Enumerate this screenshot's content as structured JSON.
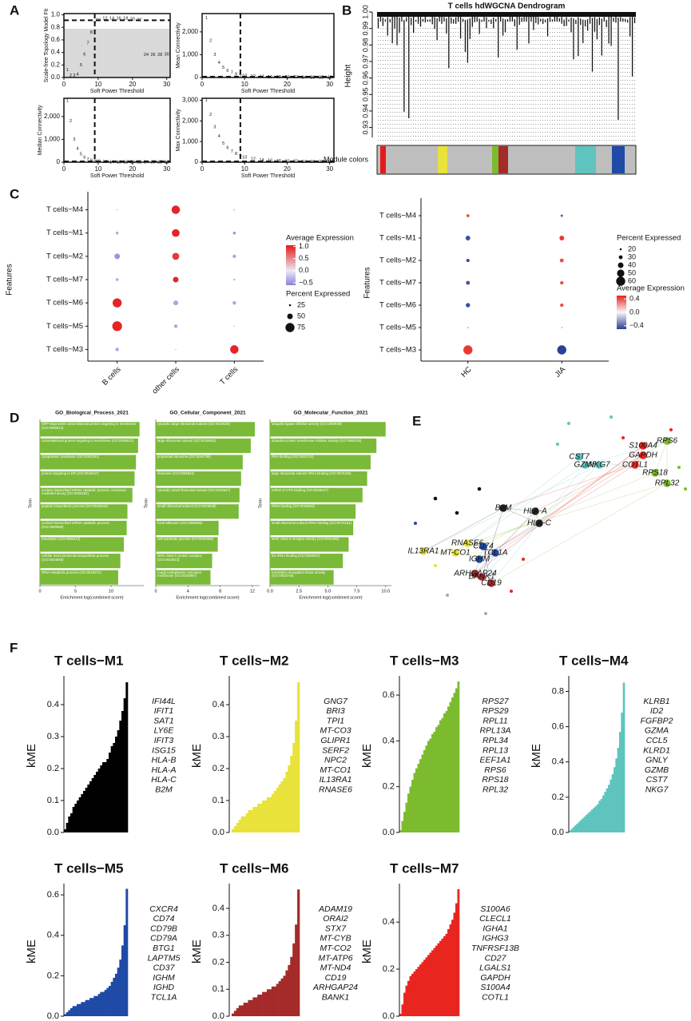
{
  "panel_labels": [
    "A",
    "B",
    "C",
    "D",
    "E",
    "F"
  ],
  "chart_data": [
    {
      "type": "scatter",
      "ylabel": "Scale-free Topology Model Fit",
      "xlabel": "Soft Power Threshold",
      "x": [
        1,
        2,
        3,
        4,
        5,
        6,
        7,
        8,
        9,
        10,
        12,
        14,
        16,
        18,
        20,
        22,
        24,
        26,
        28,
        30
      ],
      "values": [
        0.12,
        0.03,
        0.03,
        0.05,
        0.2,
        0.37,
        0.55,
        0.72,
        0.87,
        0.92,
        0.94,
        0.94,
        0.94,
        0.94,
        0.93,
        0.92,
        0.36,
        0.36,
        0.36,
        0.37
      ],
      "xlim": [
        0,
        31
      ],
      "xticks": [
        0,
        10,
        20,
        30
      ],
      "ylim": [
        0,
        1.02
      ],
      "yticks": [
        {
          "value": 0,
          "label": "0.0"
        },
        0.2,
        0.4,
        0.6,
        0.8,
        {
          "value": 1,
          "label": "1.0"
        }
      ],
      "vline": 9,
      "hline": 0.9
    },
    {
      "type": "scatter",
      "ylabel": "Mean Connectivity",
      "xlabel": "Soft Power Threshold",
      "x": [
        1,
        2,
        3,
        4,
        5,
        6,
        7,
        8,
        9,
        10,
        12,
        14,
        16,
        18,
        20,
        22,
        24,
        26,
        28,
        30
      ],
      "values": [
        2600,
        1600,
        1000,
        650,
        430,
        290,
        200,
        140,
        100,
        75,
        45,
        30,
        20,
        14,
        10,
        8,
        6,
        5,
        4,
        3
      ],
      "xlim": [
        0,
        31
      ],
      "xticks": [
        0,
        10,
        20,
        30
      ],
      "ylim": [
        0,
        2800
      ],
      "yticks": [
        0,
        {
          "value": 1000,
          "label": "1,000"
        },
        {
          "value": 2000,
          "label": "2,000"
        }
      ],
      "vline": 9,
      "hline": 0
    },
    {
      "type": "scatter",
      "ylabel": "Median Connectivity",
      "xlabel": "Soft Power Threshold",
      "x": [
        1,
        2,
        3,
        4,
        5,
        6,
        7,
        8,
        9,
        10,
        12,
        14,
        16,
        18,
        20,
        22,
        24,
        26,
        28,
        30
      ],
      "values": [
        2700,
        1800,
        1000,
        600,
        350,
        200,
        120,
        70,
        40,
        25,
        12,
        6,
        4,
        2,
        1,
        1,
        0,
        0,
        0,
        0
      ],
      "xlim": [
        0,
        31
      ],
      "xticks": [
        0,
        10,
        20,
        30
      ],
      "ylim": [
        0,
        2800
      ],
      "yticks": [
        0,
        {
          "value": 1000,
          "label": "1,000"
        },
        {
          "value": 2000,
          "label": "2,000"
        }
      ],
      "vline": 9,
      "hline": 0
    },
    {
      "type": "scatter",
      "ylabel": "Max Connectivity",
      "xlabel": "Soft Power Threshold",
      "x": [
        1,
        2,
        3,
        4,
        5,
        6,
        7,
        8,
        9,
        10,
        12,
        14,
        16,
        18,
        20,
        22,
        24,
        26,
        28,
        30
      ],
      "values": [
        3000,
        2300,
        1700,
        1250,
        900,
        700,
        520,
        400,
        300,
        230,
        150,
        100,
        70,
        50,
        40,
        30,
        20,
        18,
        15,
        12
      ],
      "xlim": [
        0,
        31
      ],
      "xticks": [
        0,
        10,
        20,
        30
      ],
      "ylim": [
        0,
        3100
      ],
      "yticks": [
        0,
        {
          "value": 1000,
          "label": "1,000"
        },
        {
          "value": 2000,
          "label": "2,000"
        },
        {
          "value": 3000,
          "label": "3,000"
        }
      ],
      "vline": 9,
      "hline": 0
    },
    {
      "type": "dendrogram",
      "title": "T cells hdWGCNA Dendrogram",
      "ylabel": "Height",
      "colorbar_label": "Module colors",
      "ylim": [
        0.924,
        1.0
      ],
      "yticks": [
        0.93,
        0.94,
        0.95,
        0.96,
        0.97,
        0.98,
        0.99,
        {
          "value": 1,
          "label": "1.00"
        }
      ]
    },
    {
      "type": "dot",
      "ylabel": "Features",
      "categories": [
        "B cells",
        "other cells",
        "T cells"
      ],
      "features": [
        "T cells−M4",
        "T cells−M1",
        "T cells−M2",
        "T cells−M7",
        "T cells−M6",
        "T cells−M5",
        "T cells−M3"
      ],
      "avg": [
        [
          -0.3,
          1.0,
          -0.4
        ],
        [
          -0.4,
          1.0,
          -0.5
        ],
        [
          -0.5,
          0.9,
          -0.4
        ],
        [
          -0.4,
          1.0,
          -0.3
        ],
        [
          1.0,
          -0.4,
          -0.4
        ],
        [
          1.0,
          -0.4,
          -0.3
        ],
        [
          -0.4,
          -0.3,
          1.0
        ]
      ],
      "pct": [
        [
          5,
          70,
          15
        ],
        [
          30,
          65,
          30
        ],
        [
          50,
          60,
          35
        ],
        [
          30,
          50,
          25
        ],
        [
          75,
          45,
          35
        ],
        [
          80,
          35,
          5
        ],
        [
          35,
          10,
          70
        ]
      ],
      "color_legend": {
        "title": "Average Expression",
        "lim": [
          -0.6,
          1.05
        ],
        "low": "#8a84d8",
        "mid": "#ece9f5",
        "high": "#e41a1c",
        "ticks": [
          {
            "value": 1,
            "label": "1.0"
          },
          0.5,
          {
            "value": 0,
            "label": "0.0"
          },
          {
            "value": -0.5,
            "label": "−0.5"
          }
        ]
      },
      "size_legend": {
        "title": "Percent Expressed",
        "ticks": [
          25,
          50,
          75
        ]
      }
    },
    {
      "type": "dot",
      "ylabel": "Features",
      "categories": [
        "HC",
        "JIA"
      ],
      "features": [
        "T cells−M4",
        "T cells−M1",
        "T cells−M2",
        "T cells−M7",
        "T cells−M6",
        "T cells−M5",
        "T cells−M3"
      ],
      "avg": [
        [
          0.4,
          -0.4
        ],
        [
          -0.45,
          0.45
        ],
        [
          -0.45,
          0.4
        ],
        [
          -0.45,
          0.4
        ],
        [
          -0.45,
          0.4
        ],
        [
          -0.3,
          0.3
        ],
        [
          0.45,
          -0.5
        ]
      ],
      "pct": [
        [
          25,
          22
        ],
        [
          35,
          35
        ],
        [
          28,
          30
        ],
        [
          30,
          28
        ],
        [
          33,
          28
        ],
        [
          15,
          15
        ],
        [
          60,
          60
        ]
      ],
      "color_legend": {
        "title": "Average Expression",
        "lim": [
          -0.5,
          0.5
        ],
        "low": "#2c3e95",
        "mid": "#f7f7f7",
        "high": "#e6241b",
        "ticks": [
          0.4,
          {
            "value": 0,
            "label": "0.0"
          },
          {
            "value": -0.4,
            "label": "−0.4"
          }
        ]
      },
      "size_legend": {
        "title": "Percent Expressed",
        "ticks": [
          20,
          30,
          40,
          50,
          60
        ]
      }
    },
    {
      "type": "hbar",
      "title": "GO_Biological_Process_2021",
      "xlabel": "Enrichment log(combined score)",
      "ylabel": "Term",
      "color": "#7bb939",
      "categories": [
        "SRP-dependent cotranslational protein targeting to membrane (GO:0006614)",
        "cotranslational protein targeting to membrane (GO:0006613)",
        "cytoplasmic translation (GO:0002181)",
        "protein targeting to ER (GO:0045047)",
        "nuclear-transcribed mRNA catabolic process, nonsense-mediated decay (GO:0000184)",
        "peptide biosynthetic process (GO:0043043)",
        "nuclear-transcribed mRNA catabolic process (GO:0000956)",
        "translation (GO:0006412)",
        "cellular macromolecule biosynthetic process (GO:0034645)",
        "rRNA metabolic process (GO:0016072)"
      ],
      "values": [
        14.0,
        13.8,
        13.5,
        13.3,
        13.0,
        12.3,
        12.2,
        11.8,
        11.3,
        11.0
      ],
      "xlim": [
        0,
        14.6
      ],
      "xticks": [
        0,
        5,
        10
      ]
    },
    {
      "type": "hbar",
      "title": "GO_Cellular_Component_2021",
      "xlabel": "Enrichment log(combined score)",
      "ylabel": "Term",
      "color": "#7bb939",
      "categories": [
        "cytosolic large ribosomal subunit (GO:0022625)",
        "large ribosomal subunit (GO:0015934)",
        "polysomal ribosome (GO:0042788)",
        "ribosome (GO:0005840)",
        "cytosolic small ribosomal subunit (GO:0022627)",
        "small ribosomal subunit (GO:0015935)",
        "focal adhesion (GO:0005925)",
        "cell-substrate junction (GO:0030055)",
        "MHC class II protein complex (GO:0042613)",
        "rough endoplasmic reticulum membrane (GO:0030867)"
      ],
      "values": [
        12.3,
        11.8,
        10.8,
        10.6,
        10.4,
        10.3,
        7.8,
        7.7,
        7.0,
        6.8
      ],
      "xlim": [
        0,
        12.9
      ],
      "xticks": [
        0,
        4,
        8,
        12
      ]
    },
    {
      "type": "hbar",
      "title": "GO_Molecular_Function_2021",
      "xlabel": "Enrichment log(combined score)",
      "ylabel": "Term",
      "color": "#7bb939",
      "categories": [
        "ubiquitin ligase inhibitor activity (GO:1990948)",
        "ubiquitin-protein transferase inhibitor activity (GO:0055105)",
        "RNA binding (GO:0003723)",
        "large ribosomal subunit rRNA binding (GO:0070180)",
        "mRNA 5'-UTR binding (GO:0048027)",
        "rRNA binding (GO:0019843)",
        "small ribosomal subunit rRNA binding (GO:0070181)",
        "MHC class II receptor activity (GO:0032395)",
        "5S rRNA binding (GO:0008097)",
        "translation elongation factor activity (GO:0003746)"
      ],
      "values": [
        10.0,
        9.2,
        8.7,
        8.4,
        8.0,
        7.4,
        7.2,
        6.8,
        6.3,
        5.5
      ],
      "xlim": [
        0,
        10.5
      ],
      "xticks": [
        {
          "value": 0,
          "label": "0.0"
        },
        2.5,
        {
          "value": 5,
          "label": "5.0"
        },
        7.5,
        {
          "value": 10,
          "label": "10.0"
        }
      ]
    },
    {
      "type": "bar",
      "title": "T cells−M1",
      "ylabel": "kME",
      "color": "#000000",
      "ylim": [
        0,
        0.48
      ],
      "yticks": [
        {
          "value": 0,
          "label": "0.0"
        },
        0.1,
        0.2,
        0.3,
        0.4
      ],
      "values": [
        0.01,
        0.03,
        0.05,
        0.06,
        0.08,
        0.09,
        0.1,
        0.11,
        0.12,
        0.13,
        0.14,
        0.15,
        0.16,
        0.17,
        0.18,
        0.19,
        0.2,
        0.21,
        0.22,
        0.22,
        0.23,
        0.25,
        0.27,
        0.28,
        0.3,
        0.32,
        0.35,
        0.38,
        0.42,
        0.47
      ],
      "genes": [
        "IFI44L",
        "IFIT1",
        "SAT1",
        "LY6E",
        "IFIT3",
        "ISG15",
        "HLA-B",
        "HLA-A",
        "HLA-C",
        "B2M"
      ]
    },
    {
      "type": "bar",
      "title": "T cells−M2",
      "ylabel": "kME",
      "color": "#e8e23a",
      "ylim": [
        0,
        0.48
      ],
      "yticks": [
        {
          "value": 0,
          "label": "0.0"
        },
        0.1,
        0.2,
        0.3,
        0.4
      ],
      "values": [
        0.0,
        0.01,
        0.02,
        0.03,
        0.04,
        0.05,
        0.05,
        0.06,
        0.07,
        0.07,
        0.08,
        0.08,
        0.09,
        0.09,
        0.1,
        0.1,
        0.11,
        0.11,
        0.12,
        0.13,
        0.14,
        0.15,
        0.16,
        0.17,
        0.19,
        0.21,
        0.24,
        0.28,
        0.35,
        0.47
      ],
      "genes": [
        "GNG7",
        "BRI3",
        "TPI1",
        "MT-CO3",
        "GLIPR1",
        "SERF2",
        "NPC2",
        "MT-CO1",
        "IL13RA1",
        "RNASE6"
      ]
    },
    {
      "type": "bar",
      "title": "T cells−M3",
      "ylabel": "kME",
      "color": "#7dbb2e",
      "ylim": [
        0,
        0.67
      ],
      "yticks": [
        {
          "value": 0,
          "label": "0.0"
        },
        0.2,
        0.4,
        0.6
      ],
      "values": [
        0.01,
        0.05,
        0.09,
        0.13,
        0.17,
        0.2,
        0.23,
        0.26,
        0.28,
        0.3,
        0.32,
        0.34,
        0.36,
        0.38,
        0.4,
        0.41,
        0.43,
        0.44,
        0.46,
        0.47,
        0.49,
        0.5,
        0.52,
        0.53,
        0.55,
        0.57,
        0.59,
        0.61,
        0.63,
        0.66
      ],
      "genes": [
        "RPS27",
        "RPS29",
        "RPL11",
        "RPL13A",
        "RPL34",
        "RPL13",
        "EEF1A1",
        "RPS6",
        "RPS18",
        "RPL32"
      ]
    },
    {
      "type": "bar",
      "title": "T cells−M4",
      "ylabel": "kME",
      "color": "#5fc4bd",
      "ylim": [
        0,
        0.87
      ],
      "yticks": [
        {
          "value": 0,
          "label": "0.0"
        },
        0.2,
        0.4,
        0.6,
        0.8
      ],
      "values": [
        0.01,
        0.02,
        0.03,
        0.04,
        0.05,
        0.06,
        0.07,
        0.08,
        0.09,
        0.1,
        0.11,
        0.12,
        0.13,
        0.14,
        0.15,
        0.16,
        0.18,
        0.19,
        0.21,
        0.23,
        0.25,
        0.27,
        0.3,
        0.33,
        0.37,
        0.42,
        0.48,
        0.57,
        0.68,
        0.85
      ],
      "genes": [
        "KLRB1",
        "ID2",
        "FGFBP2",
        "GZMA",
        "CCL5",
        "KLRD1",
        "GNLY",
        "GZMB",
        "CST7",
        "NKG7"
      ]
    },
    {
      "type": "bar",
      "title": "T cells−M5",
      "ylabel": "kME",
      "color": "#1f4aa5",
      "ylim": [
        0,
        0.64
      ],
      "yticks": [
        {
          "value": 0,
          "label": "0.0"
        },
        0.2,
        0.4,
        0.6
      ],
      "values": [
        0.01,
        0.02,
        0.03,
        0.04,
        0.05,
        0.05,
        0.06,
        0.06,
        0.07,
        0.07,
        0.08,
        0.08,
        0.09,
        0.09,
        0.1,
        0.1,
        0.11,
        0.12,
        0.12,
        0.13,
        0.14,
        0.15,
        0.17,
        0.19,
        0.21,
        0.24,
        0.28,
        0.35,
        0.45,
        0.63
      ],
      "genes": [
        "CXCR4",
        "CD74",
        "CD79B",
        "CD79A",
        "BTG1",
        "LAPTM5",
        "CD37",
        "IGHM",
        "IGHD",
        "TCL1A"
      ]
    },
    {
      "type": "bar",
      "title": "T cells−M6",
      "ylabel": "kME",
      "color": "#a52a2a",
      "ylim": [
        0,
        0.48
      ],
      "yticks": [
        {
          "value": 0,
          "label": "0.0"
        },
        0.1,
        0.2,
        0.3,
        0.4
      ],
      "values": [
        0.0,
        0.01,
        0.02,
        0.03,
        0.04,
        0.04,
        0.05,
        0.05,
        0.06,
        0.06,
        0.07,
        0.07,
        0.08,
        0.08,
        0.09,
        0.09,
        0.1,
        0.1,
        0.11,
        0.11,
        0.12,
        0.13,
        0.14,
        0.15,
        0.17,
        0.19,
        0.22,
        0.27,
        0.34,
        0.47
      ],
      "genes": [
        "ADAM19",
        "ORAI2",
        "STX7",
        "MT-CYB",
        "MT-CO2",
        "MT-ATP6",
        "MT-ND4",
        "CD19",
        "ARHGAP24",
        "BANK1"
      ]
    },
    {
      "type": "bar",
      "title": "T cells−M7",
      "ylabel": "kME",
      "color": "#e8261f",
      "ylim": [
        0,
        0.55
      ],
      "yticks": [
        {
          "value": 0,
          "label": "0.0"
        },
        0.2,
        0.4
      ],
      "values": [
        0.01,
        0.05,
        0.1,
        0.13,
        0.15,
        0.17,
        0.18,
        0.19,
        0.2,
        0.21,
        0.22,
        0.23,
        0.24,
        0.25,
        0.26,
        0.27,
        0.28,
        0.29,
        0.3,
        0.31,
        0.32,
        0.33,
        0.34,
        0.35,
        0.37,
        0.39,
        0.41,
        0.44,
        0.48,
        0.54
      ],
      "genes": [
        "S100A6",
        "CLECL1",
        "IGHA1",
        "IGHG3",
        "TNFRSF13B",
        "CD27",
        "LGALS1",
        "GAPDH",
        "S100A4",
        "COTL1"
      ]
    }
  ],
  "network": {
    "nodes": [
      {
        "label": "CST7",
        "color": "#5fc4bd"
      },
      {
        "label": "GZMB",
        "color": "#5fc4bd"
      },
      {
        "label": "NKG7",
        "color": "#5fc4bd"
      },
      {
        "label": "S100A4",
        "color": "#e8261f"
      },
      {
        "label": "GAPDH",
        "color": "#e8261f"
      },
      {
        "label": "COTL1",
        "color": "#e8261f"
      },
      {
        "label": "RPS6",
        "color": "#7dbb2e"
      },
      {
        "label": "RPS18",
        "color": "#7dbb2e"
      },
      {
        "label": "RPL32",
        "color": "#7dbb2e"
      },
      {
        "label": "B2M",
        "color": "#222222"
      },
      {
        "label": "HLA-A",
        "color": "#222222"
      },
      {
        "label": "HLA-C",
        "color": "#222222"
      },
      {
        "label": "IL13RA1",
        "color": "#e8e23a"
      },
      {
        "label": "RNASE6",
        "color": "#e8e23a"
      },
      {
        "label": "MT-CO1",
        "color": "#e8e23a"
      },
      {
        "label": "CD74",
        "color": "#1f4aa5"
      },
      {
        "label": "TCL1A",
        "color": "#1f4aa5"
      },
      {
        "label": "IGHM",
        "color": "#1f4aa5"
      },
      {
        "label": "ARHGAP24",
        "color": "#a52a2a"
      },
      {
        "label": "BANK1",
        "color": "#a52a2a"
      },
      {
        "label": "CD19",
        "color": "#a52a2a"
      }
    ]
  }
}
